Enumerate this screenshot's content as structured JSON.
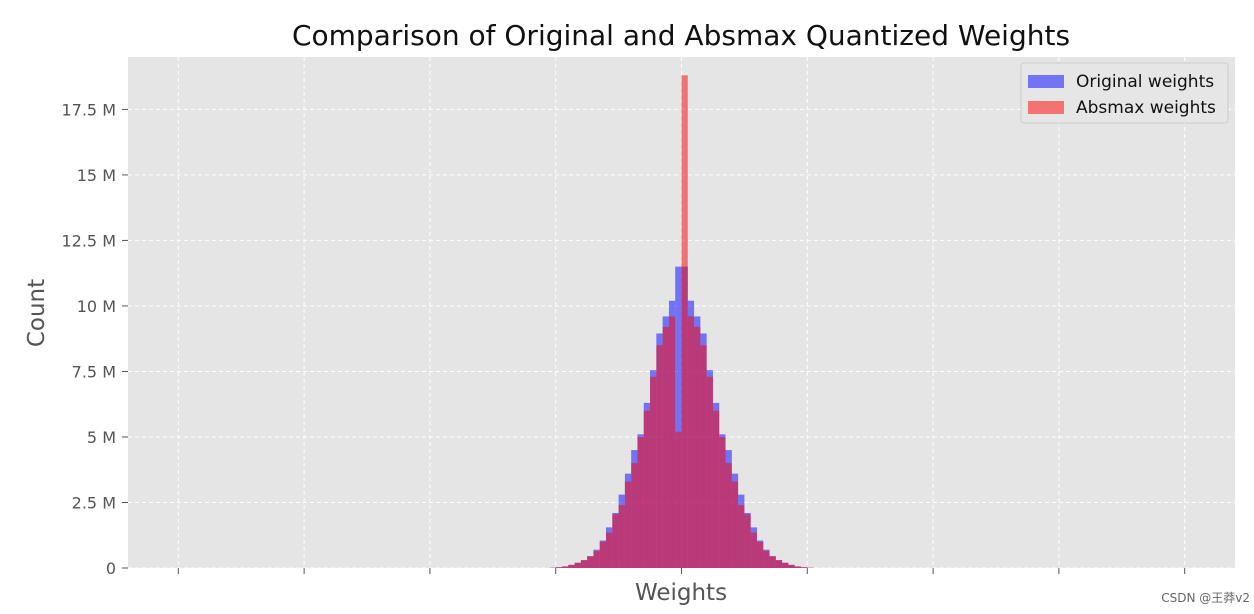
{
  "chart_data": {
    "type": "histogram",
    "title": "Comparison of Original and Absmax Quantized Weights",
    "xlabel": "Weights",
    "ylabel": "Count",
    "ylim": [
      0,
      19500000
    ],
    "yticks": [
      0,
      2500000,
      5000000,
      7500000,
      10000000,
      12500000,
      15000000,
      17500000
    ],
    "ytick_labels": [
      "0",
      "2.5 M",
      "5 M",
      "7.5 M",
      "10 M",
      "12.5 M",
      "15 M",
      "17.5 M"
    ],
    "xlim": [
      -1.1,
      1.1
    ],
    "xticks": [
      -1.0,
      -0.75,
      -0.5,
      -0.25,
      0.0,
      0.25,
      0.5,
      0.75,
      1.0
    ],
    "xtick_labels": [
      "",
      "",
      "",
      "",
      "",
      "",
      "",
      "",
      ""
    ],
    "grid": true,
    "legend_position": "top-right",
    "bin_width": 0.0125,
    "series": [
      {
        "name": "Original weights",
        "color": "#0000ff",
        "alpha": 0.5,
        "bins": [
          {
            "x0": -0.2625,
            "v": 10000
          },
          {
            "x0": -0.25,
            "v": 30000
          },
          {
            "x0": -0.2375,
            "v": 60000
          },
          {
            "x0": -0.225,
            "v": 120000
          },
          {
            "x0": -0.2125,
            "v": 200000
          },
          {
            "x0": -0.2,
            "v": 300000
          },
          {
            "x0": -0.1875,
            "v": 450000
          },
          {
            "x0": -0.175,
            "v": 700000
          },
          {
            "x0": -0.1625,
            "v": 1050000
          },
          {
            "x0": -0.15,
            "v": 1550000
          },
          {
            "x0": -0.1375,
            "v": 2100000
          },
          {
            "x0": -0.125,
            "v": 2800000
          },
          {
            "x0": -0.1125,
            "v": 3600000
          },
          {
            "x0": -0.1,
            "v": 4500000
          },
          {
            "x0": -0.0875,
            "v": 5100000
          },
          {
            "x0": -0.075,
            "v": 6300000
          },
          {
            "x0": -0.0625,
            "v": 7550000
          },
          {
            "x0": -0.05,
            "v": 8950000
          },
          {
            "x0": -0.0375,
            "v": 9600000
          },
          {
            "x0": -0.025,
            "v": 10200000
          },
          {
            "x0": -0.0125,
            "v": 11500000
          },
          {
            "x0": 0.0,
            "v": 11500000
          },
          {
            "x0": 0.0125,
            "v": 10200000
          },
          {
            "x0": 0.025,
            "v": 9600000
          },
          {
            "x0": 0.0375,
            "v": 8950000
          },
          {
            "x0": 0.05,
            "v": 7550000
          },
          {
            "x0": 0.0625,
            "v": 6300000
          },
          {
            "x0": 0.075,
            "v": 5100000
          },
          {
            "x0": 0.0875,
            "v": 4500000
          },
          {
            "x0": 0.1,
            "v": 3600000
          },
          {
            "x0": 0.1125,
            "v": 2800000
          },
          {
            "x0": 0.125,
            "v": 2100000
          },
          {
            "x0": 0.1375,
            "v": 1550000
          },
          {
            "x0": 0.15,
            "v": 1050000
          },
          {
            "x0": 0.1625,
            "v": 700000
          },
          {
            "x0": 0.175,
            "v": 450000
          },
          {
            "x0": 0.1875,
            "v": 300000
          },
          {
            "x0": 0.2,
            "v": 200000
          },
          {
            "x0": 0.2125,
            "v": 120000
          },
          {
            "x0": 0.225,
            "v": 60000
          },
          {
            "x0": 0.2375,
            "v": 30000
          },
          {
            "x0": 0.25,
            "v": 10000
          }
        ]
      },
      {
        "name": "Absmax weights",
        "color": "#ff0000",
        "alpha": 0.5,
        "bins": [
          {
            "x0": -0.2625,
            "v": 10000
          },
          {
            "x0": -0.25,
            "v": 30000
          },
          {
            "x0": -0.2375,
            "v": 60000
          },
          {
            "x0": -0.225,
            "v": 120000
          },
          {
            "x0": -0.2125,
            "v": 200000
          },
          {
            "x0": -0.2,
            "v": 300000
          },
          {
            "x0": -0.1875,
            "v": 450000
          },
          {
            "x0": -0.175,
            "v": 650000
          },
          {
            "x0": -0.1625,
            "v": 1000000
          },
          {
            "x0": -0.15,
            "v": 1350000
          },
          {
            "x0": -0.1375,
            "v": 2050000
          },
          {
            "x0": -0.125,
            "v": 2400000
          },
          {
            "x0": -0.1125,
            "v": 3300000
          },
          {
            "x0": -0.1,
            "v": 4000000
          },
          {
            "x0": -0.0875,
            "v": 5000000
          },
          {
            "x0": -0.075,
            "v": 6000000
          },
          {
            "x0": -0.0625,
            "v": 7300000
          },
          {
            "x0": -0.05,
            "v": 8500000
          },
          {
            "x0": -0.0375,
            "v": 9200000
          },
          {
            "x0": -0.025,
            "v": 9600000
          },
          {
            "x0": -0.0125,
            "v": 5200000
          },
          {
            "x0": 0.0,
            "v": 18800000
          },
          {
            "x0": 0.0125,
            "v": 9600000
          },
          {
            "x0": 0.025,
            "v": 9200000
          },
          {
            "x0": 0.0375,
            "v": 8500000
          },
          {
            "x0": 0.05,
            "v": 7300000
          },
          {
            "x0": 0.0625,
            "v": 6000000
          },
          {
            "x0": 0.075,
            "v": 5000000
          },
          {
            "x0": 0.0875,
            "v": 4000000
          },
          {
            "x0": 0.1,
            "v": 3300000
          },
          {
            "x0": 0.1125,
            "v": 2400000
          },
          {
            "x0": 0.125,
            "v": 2050000
          },
          {
            "x0": 0.1375,
            "v": 1350000
          },
          {
            "x0": 0.15,
            "v": 1000000
          },
          {
            "x0": 0.1625,
            "v": 650000
          },
          {
            "x0": 0.175,
            "v": 450000
          },
          {
            "x0": 0.1875,
            "v": 300000
          },
          {
            "x0": 0.2,
            "v": 200000
          },
          {
            "x0": 0.2125,
            "v": 120000
          },
          {
            "x0": 0.225,
            "v": 60000
          },
          {
            "x0": 0.2375,
            "v": 30000
          },
          {
            "x0": 0.25,
            "v": 10000
          }
        ]
      }
    ]
  },
  "watermark": "CSDN @王莽v2"
}
